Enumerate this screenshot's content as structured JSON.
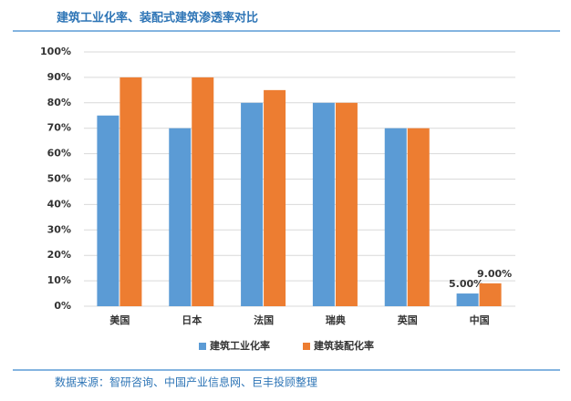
{
  "chart_data": {
    "type": "bar",
    "title": "建筑工业化率、装配式建筑渗透率对比",
    "source": "数据来源：智研咨询、中国产业信息网、巨丰投顾整理",
    "categories": [
      "美国",
      "日本",
      "法国",
      "瑞典",
      "英国",
      "中国"
    ],
    "series": [
      {
        "name": "建筑工业化率",
        "color": "#5b9bd5",
        "values": [
          75,
          70,
          80,
          80,
          70,
          5
        ],
        "value_labels": [
          null,
          null,
          null,
          null,
          null,
          "5.00%"
        ]
      },
      {
        "name": "建筑装配化率",
        "color": "#ed7d31",
        "values": [
          90,
          90,
          85,
          80,
          70,
          9
        ],
        "value_labels": [
          null,
          null,
          null,
          null,
          null,
          "9.00%"
        ]
      }
    ],
    "ylim": [
      0,
      100
    ],
    "yticks": [
      {
        "value": 0,
        "label": "0%"
      },
      {
        "value": 10,
        "label": "10%"
      },
      {
        "value": 20,
        "label": "20%"
      },
      {
        "value": 30,
        "label": "30%"
      },
      {
        "value": 40,
        "label": "40%"
      },
      {
        "value": 50,
        "label": "50%"
      },
      {
        "value": 60,
        "label": "60%"
      },
      {
        "value": 70,
        "label": "70%"
      },
      {
        "value": 80,
        "label": "80%"
      },
      {
        "value": 90,
        "label": "90%"
      },
      {
        "value": 100,
        "label": "100%"
      }
    ],
    "grid": true,
    "legend": "bottom"
  }
}
